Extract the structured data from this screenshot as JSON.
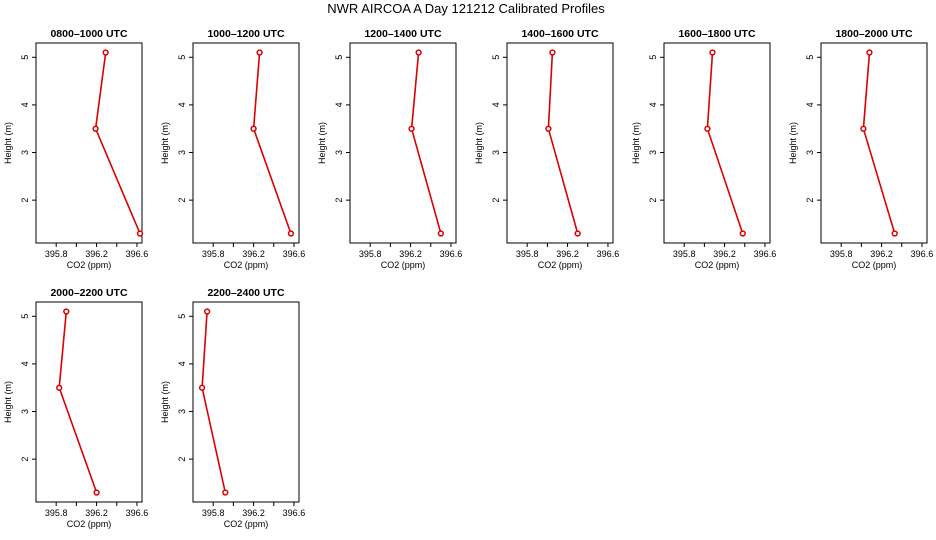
{
  "page": {
    "title": "NWR AIRCOA A  Day 121212  Calibrated Profiles"
  },
  "colors": {
    "series": "#dd0000",
    "axis": "#000000",
    "background": "#ffffff"
  },
  "chart_data": [
    {
      "type": "line",
      "title": "0800–1000 UTC",
      "xlabel": "CO2 (ppm)",
      "ylabel": "Height (m)",
      "x_ticks": [
        "395.8",
        "396.2",
        "396.6"
      ],
      "y_ticks": [
        "2",
        "3",
        "4",
        "5"
      ],
      "xlim": [
        395.6,
        396.65
      ],
      "ylim": [
        1.1,
        5.3
      ],
      "grid": false,
      "series": [
        {
          "x": [
            396.29,
            396.19,
            396.63
          ],
          "y": [
            5.1,
            3.5,
            1.3
          ]
        }
      ]
    },
    {
      "type": "line",
      "title": "1000–1200 UTC",
      "xlabel": "CO2 (ppm)",
      "ylabel": "Height (m)",
      "x_ticks": [
        "395.8",
        "396.2",
        "396.6"
      ],
      "y_ticks": [
        "2",
        "3",
        "4",
        "5"
      ],
      "xlim": [
        395.6,
        396.65
      ],
      "ylim": [
        1.1,
        5.3
      ],
      "grid": false,
      "series": [
        {
          "x": [
            396.26,
            396.2,
            396.57
          ],
          "y": [
            5.1,
            3.5,
            1.3
          ]
        }
      ]
    },
    {
      "type": "line",
      "title": "1200–1400 UTC",
      "xlabel": "CO2 (ppm)",
      "ylabel": "Height (m)",
      "x_ticks": [
        "395.8",
        "396.2",
        "396.6"
      ],
      "y_ticks": [
        "2",
        "3",
        "4",
        "5"
      ],
      "xlim": [
        395.6,
        396.65
      ],
      "ylim": [
        1.1,
        5.3
      ],
      "grid": false,
      "series": [
        {
          "x": [
            396.28,
            396.21,
            396.5
          ],
          "y": [
            5.1,
            3.5,
            1.3
          ]
        }
      ]
    },
    {
      "type": "line",
      "title": "1400–1600 UTC",
      "xlabel": "CO2 (ppm)",
      "ylabel": "Height (m)",
      "x_ticks": [
        "395.8",
        "396.2",
        "396.6"
      ],
      "y_ticks": [
        "2",
        "3",
        "4",
        "5"
      ],
      "xlim": [
        395.6,
        396.65
      ],
      "ylim": [
        1.1,
        5.3
      ],
      "grid": false,
      "series": [
        {
          "x": [
            396.05,
            396.01,
            396.3
          ],
          "y": [
            5.1,
            3.5,
            1.3
          ]
        }
      ]
    },
    {
      "type": "line",
      "title": "1600–1800 UTC",
      "xlabel": "CO2 (ppm)",
      "ylabel": "Height (m)",
      "x_ticks": [
        "395.8",
        "396.2",
        "396.6"
      ],
      "y_ticks": [
        "2",
        "3",
        "4",
        "5"
      ],
      "xlim": [
        395.6,
        396.65
      ],
      "ylim": [
        1.1,
        5.3
      ],
      "grid": false,
      "series": [
        {
          "x": [
            396.08,
            396.03,
            396.38
          ],
          "y": [
            5.1,
            3.5,
            1.3
          ]
        }
      ]
    },
    {
      "type": "line",
      "title": "1800–2000 UTC",
      "xlabel": "CO2 (ppm)",
      "ylabel": "Height (m)",
      "x_ticks": [
        "395.8",
        "396.2",
        "396.6"
      ],
      "y_ticks": [
        "2",
        "3",
        "4",
        "5"
      ],
      "xlim": [
        395.6,
        396.65
      ],
      "ylim": [
        1.1,
        5.3
      ],
      "grid": false,
      "series": [
        {
          "x": [
            396.08,
            396.02,
            396.33
          ],
          "y": [
            5.1,
            3.5,
            1.3
          ]
        }
      ]
    },
    {
      "type": "line",
      "title": "2000–2200 UTC",
      "xlabel": "CO2 (ppm)",
      "ylabel": "Height (m)",
      "x_ticks": [
        "395.8",
        "396.2",
        "396.6"
      ],
      "y_ticks": [
        "2",
        "3",
        "4",
        "5"
      ],
      "xlim": [
        395.6,
        396.65
      ],
      "ylim": [
        1.1,
        5.3
      ],
      "grid": false,
      "series": [
        {
          "x": [
            395.9,
            395.83,
            396.2
          ],
          "y": [
            5.1,
            3.5,
            1.3
          ]
        }
      ]
    },
    {
      "type": "line",
      "title": "2200–2400 UTC",
      "xlabel": "CO2 (ppm)",
      "ylabel": "Height (m)",
      "x_ticks": [
        "395.8",
        "396.2",
        "396.6"
      ],
      "y_ticks": [
        "2",
        "3",
        "4",
        "5"
      ],
      "xlim": [
        395.6,
        396.65
      ],
      "ylim": [
        1.1,
        5.3
      ],
      "grid": false,
      "series": [
        {
          "x": [
            395.74,
            395.69,
            395.92
          ],
          "y": [
            5.1,
            3.5,
            1.3
          ]
        }
      ]
    }
  ]
}
